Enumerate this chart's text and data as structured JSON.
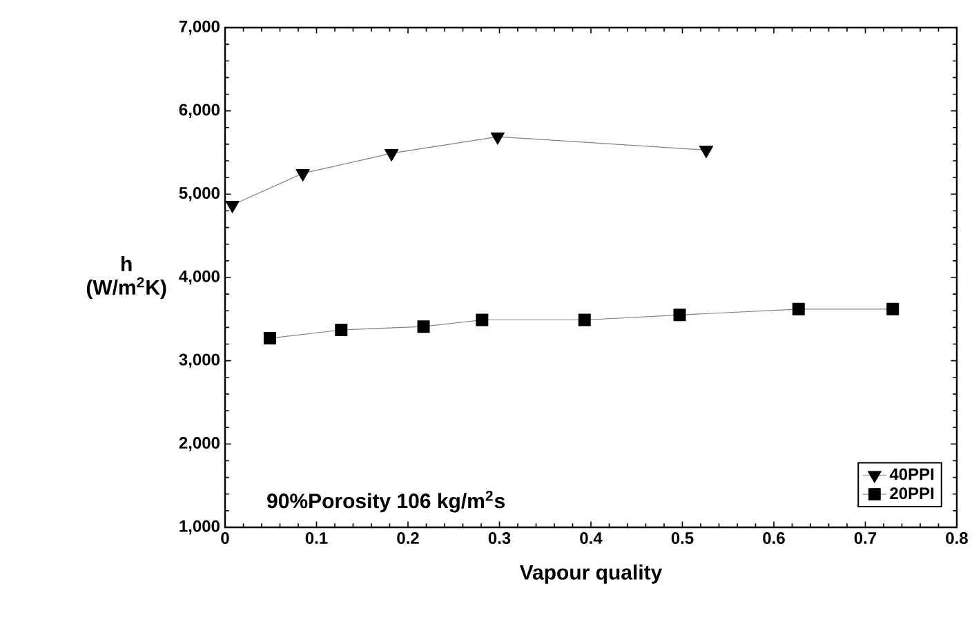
{
  "chart_data": {
    "type": "line",
    "xlabel": "Vapour quality",
    "ylabel": "h (W/m$^{2}$K)",
    "xlim": [
      0,
      0.8
    ],
    "xticks": [
      0,
      0.1,
      0.2,
      0.3,
      0.4,
      0.5,
      0.6,
      0.7,
      0.8
    ],
    "ylim": [
      1000,
      7000
    ],
    "yticks": [
      {
        "value": 1000,
        "label": "1,000"
      },
      {
        "value": 2000,
        "label": "2,000"
      },
      {
        "value": 3000,
        "label": "3,000"
      },
      {
        "value": 4000,
        "label": "4,000"
      },
      {
        "value": 5000,
        "label": "5,000"
      },
      {
        "value": 6000,
        "label": "6,000"
      },
      {
        "value": 7000,
        "label": "7,000"
      }
    ],
    "series": [
      {
        "name": "40PPI",
        "color": "#000000",
        "marker": "triangle",
        "x": [
          0.008,
          0.085,
          0.182,
          0.298,
          0.526
        ],
        "values": [
          4870,
          5250,
          5490,
          5690,
          5530
        ]
      },
      {
        "name": "20PPI",
        "color": "#000000",
        "marker": "square",
        "x": [
          0.049,
          0.127,
          0.217,
          0.281,
          0.393,
          0.497,
          0.627,
          0.73
        ],
        "values": [
          3270,
          3370,
          3410,
          3490,
          3490,
          3550,
          3620,
          3620
        ]
      }
    ],
    "annotations": [
      {
        "text": "90%Porosity  106 kg/m$^{2}$s"
      }
    ],
    "legend": "bottom right",
    "grid": false,
    "line_style": "solid"
  }
}
